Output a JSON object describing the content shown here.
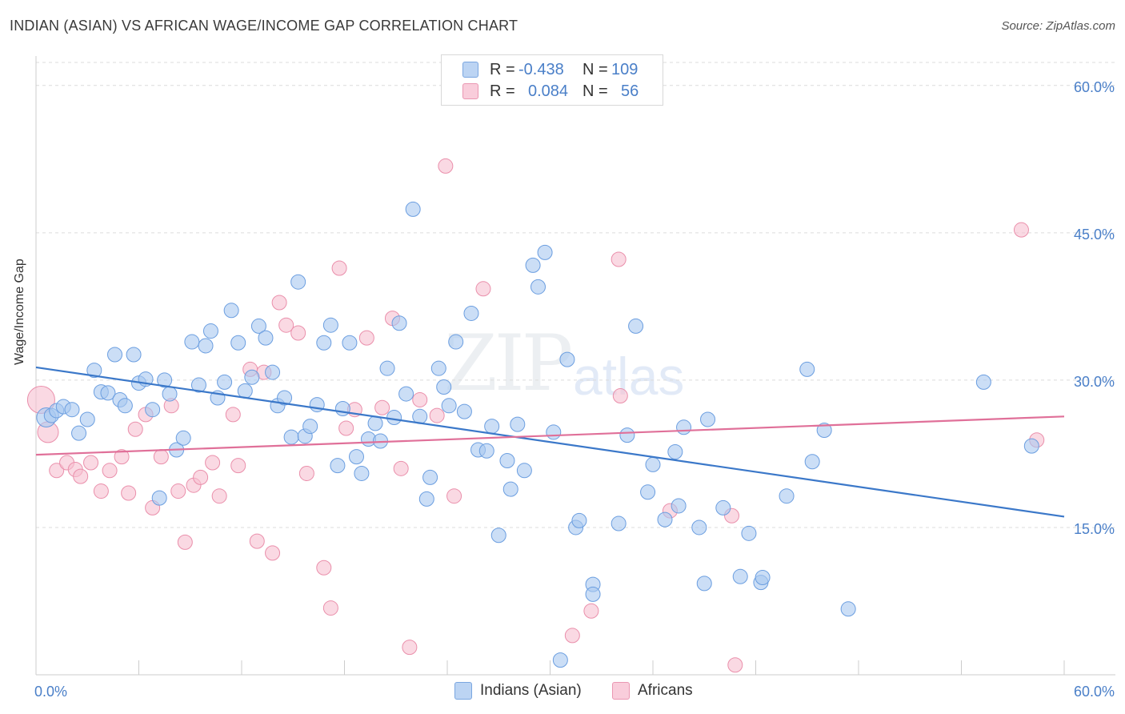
{
  "header": {
    "title": "INDIAN (ASIAN) VS AFRICAN WAGE/INCOME GAP CORRELATION CHART",
    "source": "Source: ZipAtlas.com"
  },
  "watermark": {
    "zip": "ZIP",
    "atlas": "atlas"
  },
  "legend": {
    "rows": [
      {
        "r_label": "R =",
        "r_value": "-0.438",
        "n_label": "N =",
        "n_value": "109"
      },
      {
        "r_label": "R =",
        "r_value": "0.084",
        "n_label": "N =",
        "n_value": "56"
      }
    ]
  },
  "bottom_legend": {
    "series1": "Indians (Asian)",
    "series2": "Africans"
  },
  "colors": {
    "blue_fill": "#a9c8f0",
    "blue_stroke": "#6b9ee0",
    "blue_line": "#3b78c9",
    "pink_fill": "#f7c0d0",
    "pink_stroke": "#ea8fab",
    "pink_line": "#e07099",
    "axis_text": "#4a7fc8",
    "grid": "#dcdcdc"
  },
  "chart_data": {
    "type": "scatter",
    "title": "INDIAN (ASIAN) VS AFRICAN WAGE/INCOME GAP CORRELATION CHART",
    "xlabel": "",
    "ylabel": "Wage/Income Gap",
    "xlim": [
      0,
      60
    ],
    "ylim": [
      0,
      63
    ],
    "x_tick_labels": [
      "0.0%",
      "60.0%"
    ],
    "y_ticks": [
      15,
      30,
      45,
      60
    ],
    "y_tick_labels": [
      "15.0%",
      "30.0%",
      "45.0%",
      "60.0%"
    ],
    "grid": true,
    "legend_position": "top-center",
    "series": [
      {
        "name": "Indians (Asian)",
        "color": "#a9c8f0",
        "trend": {
          "x": [
            0,
            60
          ],
          "y": [
            31.3,
            16.1
          ]
        },
        "points": [
          [
            0.6,
            26.2
          ],
          [
            0.9,
            26.4
          ],
          [
            1.2,
            26.9
          ],
          [
            1.6,
            27.3
          ],
          [
            2.1,
            27.0
          ],
          [
            2.5,
            24.6
          ],
          [
            3.0,
            26.0
          ],
          [
            3.4,
            31.0
          ],
          [
            3.8,
            28.8
          ],
          [
            4.2,
            28.7
          ],
          [
            4.6,
            32.6
          ],
          [
            4.9,
            28.0
          ],
          [
            5.2,
            27.4
          ],
          [
            5.7,
            32.6
          ],
          [
            6.0,
            29.7
          ],
          [
            6.4,
            30.1
          ],
          [
            6.8,
            27.0
          ],
          [
            7.2,
            18.0
          ],
          [
            7.5,
            30.0
          ],
          [
            7.8,
            28.6
          ],
          [
            8.2,
            22.9
          ],
          [
            8.6,
            24.1
          ],
          [
            9.1,
            33.9
          ],
          [
            9.5,
            29.5
          ],
          [
            9.9,
            33.5
          ],
          [
            10.2,
            35.0
          ],
          [
            10.6,
            28.2
          ],
          [
            11.0,
            29.8
          ],
          [
            11.4,
            37.1
          ],
          [
            11.8,
            33.8
          ],
          [
            12.2,
            28.9
          ],
          [
            12.6,
            30.3
          ],
          [
            13.0,
            35.5
          ],
          [
            13.4,
            34.3
          ],
          [
            13.8,
            30.8
          ],
          [
            14.1,
            27.4
          ],
          [
            14.5,
            28.2
          ],
          [
            14.9,
            24.2
          ],
          [
            15.3,
            40.0
          ],
          [
            15.7,
            24.3
          ],
          [
            16.0,
            25.3
          ],
          [
            16.4,
            27.5
          ],
          [
            16.8,
            33.8
          ],
          [
            17.2,
            35.6
          ],
          [
            17.6,
            21.3
          ],
          [
            17.9,
            27.1
          ],
          [
            18.3,
            33.8
          ],
          [
            18.7,
            22.2
          ],
          [
            19.0,
            20.5
          ],
          [
            19.4,
            24.0
          ],
          [
            19.8,
            25.6
          ],
          [
            20.1,
            23.8
          ],
          [
            20.5,
            31.2
          ],
          [
            20.9,
            26.2
          ],
          [
            21.2,
            35.8
          ],
          [
            21.6,
            28.6
          ],
          [
            22.0,
            47.4
          ],
          [
            22.4,
            26.3
          ],
          [
            22.8,
            17.9
          ],
          [
            23.0,
            20.1
          ],
          [
            23.5,
            31.2
          ],
          [
            23.8,
            29.3
          ],
          [
            24.1,
            27.4
          ],
          [
            24.5,
            33.9
          ],
          [
            25.0,
            26.8
          ],
          [
            25.4,
            36.8
          ],
          [
            25.8,
            22.9
          ],
          [
            26.3,
            22.8
          ],
          [
            26.6,
            25.3
          ],
          [
            27.0,
            14.2
          ],
          [
            27.5,
            21.8
          ],
          [
            27.7,
            18.9
          ],
          [
            28.1,
            25.5
          ],
          [
            28.5,
            20.8
          ],
          [
            29.0,
            41.7
          ],
          [
            29.3,
            39.5
          ],
          [
            29.7,
            43.0
          ],
          [
            30.2,
            24.7
          ],
          [
            30.6,
            1.5
          ],
          [
            31.0,
            32.1
          ],
          [
            31.5,
            15.0
          ],
          [
            31.7,
            15.7
          ],
          [
            32.5,
            9.2
          ],
          [
            32.5,
            8.2
          ],
          [
            34.0,
            15.4
          ],
          [
            34.5,
            24.4
          ],
          [
            35.0,
            35.5
          ],
          [
            35.7,
            18.6
          ],
          [
            36.0,
            21.4
          ],
          [
            36.7,
            15.8
          ],
          [
            37.3,
            22.7
          ],
          [
            37.5,
            17.2
          ],
          [
            37.8,
            25.2
          ],
          [
            38.7,
            15.0
          ],
          [
            39.0,
            9.3
          ],
          [
            39.2,
            26.0
          ],
          [
            40.1,
            17.0
          ],
          [
            41.1,
            10.0
          ],
          [
            41.6,
            14.4
          ],
          [
            42.3,
            9.4
          ],
          [
            42.4,
            9.9
          ],
          [
            43.8,
            18.2
          ],
          [
            45.0,
            31.1
          ],
          [
            45.3,
            21.7
          ],
          [
            46.0,
            24.9
          ],
          [
            47.4,
            6.7
          ],
          [
            55.3,
            29.8
          ],
          [
            58.1,
            23.3
          ]
        ]
      },
      {
        "name": "Africans",
        "color": "#f7c0d0",
        "trend": {
          "x": [
            0,
            60
          ],
          "y": [
            22.4,
            26.3
          ]
        },
        "points": [
          [
            0.3,
            28.0
          ],
          [
            0.7,
            24.7
          ],
          [
            1.2,
            20.8
          ],
          [
            1.8,
            21.6
          ],
          [
            2.3,
            20.9
          ],
          [
            2.6,
            20.2
          ],
          [
            3.2,
            21.6
          ],
          [
            3.8,
            18.7
          ],
          [
            4.3,
            20.8
          ],
          [
            5.0,
            22.2
          ],
          [
            5.4,
            18.5
          ],
          [
            5.8,
            25.0
          ],
          [
            6.4,
            26.5
          ],
          [
            6.8,
            17.0
          ],
          [
            7.3,
            22.2
          ],
          [
            7.9,
            27.4
          ],
          [
            8.3,
            18.7
          ],
          [
            8.7,
            13.5
          ],
          [
            9.2,
            19.3
          ],
          [
            9.6,
            20.1
          ],
          [
            10.3,
            21.6
          ],
          [
            10.7,
            18.2
          ],
          [
            11.5,
            26.5
          ],
          [
            11.8,
            21.3
          ],
          [
            12.5,
            31.1
          ],
          [
            12.9,
            13.6
          ],
          [
            13.3,
            30.8
          ],
          [
            13.8,
            12.4
          ],
          [
            14.2,
            37.9
          ],
          [
            14.6,
            35.6
          ],
          [
            15.3,
            34.8
          ],
          [
            15.8,
            20.5
          ],
          [
            16.8,
            10.9
          ],
          [
            17.2,
            6.8
          ],
          [
            17.7,
            41.4
          ],
          [
            18.1,
            25.1
          ],
          [
            18.6,
            27.0
          ],
          [
            19.3,
            34.3
          ],
          [
            20.2,
            27.2
          ],
          [
            20.8,
            36.3
          ],
          [
            21.3,
            21.0
          ],
          [
            21.8,
            2.8
          ],
          [
            22.4,
            28.0
          ],
          [
            23.4,
            26.4
          ],
          [
            23.9,
            51.8
          ],
          [
            24.4,
            18.2
          ],
          [
            26.1,
            39.3
          ],
          [
            31.3,
            4.0
          ],
          [
            32.4,
            6.5
          ],
          [
            34.0,
            42.3
          ],
          [
            34.1,
            28.4
          ],
          [
            37.0,
            16.7
          ],
          [
            40.6,
            16.2
          ],
          [
            40.8,
            1.0
          ],
          [
            57.5,
            45.3
          ],
          [
            58.4,
            23.9
          ]
        ]
      }
    ]
  }
}
